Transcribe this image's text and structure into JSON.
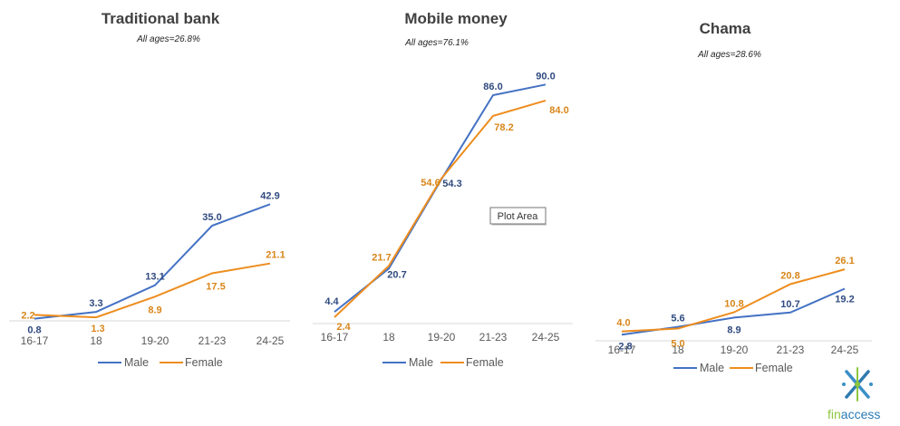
{
  "colors": {
    "male": "#4472c4",
    "female": "#ed8d1f",
    "axis": "#d9d9d9",
    "male_label": "#2f4a7f",
    "female_label": "#d8861a"
  },
  "legend": {
    "male": "Male",
    "female": "Female"
  },
  "tooltip": "Plot Area",
  "logo": {
    "icon": "finaccess-logo-icon",
    "fin": "fin",
    "access": "access"
  },
  "chart_data": [
    {
      "type": "line",
      "title": "Traditional bank",
      "subtitle": "All ages=26.8%",
      "categories": [
        "16-17",
        "18",
        "19-20",
        "21-23",
        "24-25"
      ],
      "ylim": [
        0,
        100
      ],
      "grid": false,
      "legend_position": "bottom",
      "series": [
        {
          "name": "Male",
          "values": [
            0.8,
            3.3,
            13.1,
            35.0,
            42.9
          ],
          "labels": [
            "0.8",
            "3.3",
            "13.1",
            "35.0",
            "42.9"
          ]
        },
        {
          "name": "Female",
          "values": [
            2.2,
            1.3,
            8.9,
            17.5,
            21.1
          ],
          "labels": [
            "2.2",
            "1.3",
            "8.9",
            "17.5",
            "21.1"
          ]
        }
      ]
    },
    {
      "type": "line",
      "title": "Mobile money",
      "subtitle": "All ages=76.1%",
      "categories": [
        "16-17",
        "18",
        "19-20",
        "21-23",
        "24-25"
      ],
      "ylim": [
        0,
        100
      ],
      "grid": false,
      "legend_position": "bottom",
      "series": [
        {
          "name": "Male",
          "values": [
            4.4,
            20.7,
            54.3,
            86.0,
            90.0
          ],
          "labels": [
            "4.4",
            "20.7",
            "54.3",
            "86.0",
            "90.0"
          ]
        },
        {
          "name": "Female",
          "values": [
            2.4,
            21.7,
            54.6,
            78.2,
            84.0
          ],
          "labels": [
            "2.4",
            "21.7",
            "54.6",
            "78.2",
            "84.0"
          ]
        }
      ]
    },
    {
      "type": "line",
      "title": "Chama",
      "subtitle": "All ages=28.6%",
      "categories": [
        "16-17",
        "18",
        "19-20",
        "21-23",
        "24-25"
      ],
      "ylim": [
        0,
        100
      ],
      "grid": false,
      "legend_position": "bottom",
      "series": [
        {
          "name": "Male",
          "values": [
            2.8,
            5.6,
            8.9,
            10.7,
            19.2
          ],
          "labels": [
            "2.8",
            "5.6",
            "8.9",
            "10.7",
            "19.2"
          ]
        },
        {
          "name": "Female",
          "values": [
            4.0,
            5.0,
            10.8,
            20.8,
            26.1
          ],
          "labels": [
            "4.0",
            "5.0",
            "10.8",
            "20.8",
            "26.1"
          ]
        }
      ]
    }
  ]
}
